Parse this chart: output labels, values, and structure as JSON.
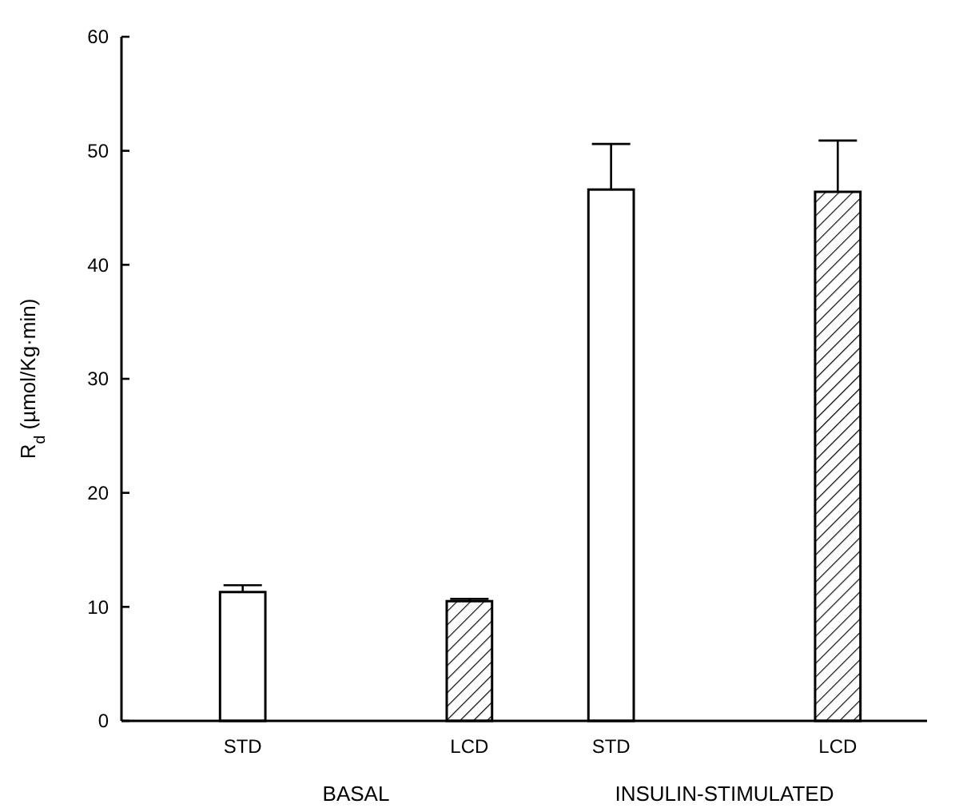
{
  "chart_data": {
    "type": "bar",
    "ylabel": "R$_{d}$ (µmol/Kg·min)",
    "categories": [
      "BASAL",
      "INSULIN-STIMULATED"
    ],
    "series": [
      {
        "name": "STD",
        "color": "#ffffff",
        "values": [
          11.3,
          46.6
        ],
        "errors": [
          [
            11.3,
            11.9
          ],
          [
            46.6,
            50.6
          ]
        ]
      },
      {
        "name": "LCD",
        "color": "#000000",
        "values": [
          10.5,
          46.4
        ],
        "errors": [
          [
            10.5,
            10.7
          ],
          [
            46.4,
            50.9
          ]
        ]
      }
    ],
    "ylim": [
      0,
      60
    ],
    "yticks": [
      0,
      10,
      20,
      30,
      40,
      50,
      60
    ],
    "grid": false,
    "legend": false
  }
}
